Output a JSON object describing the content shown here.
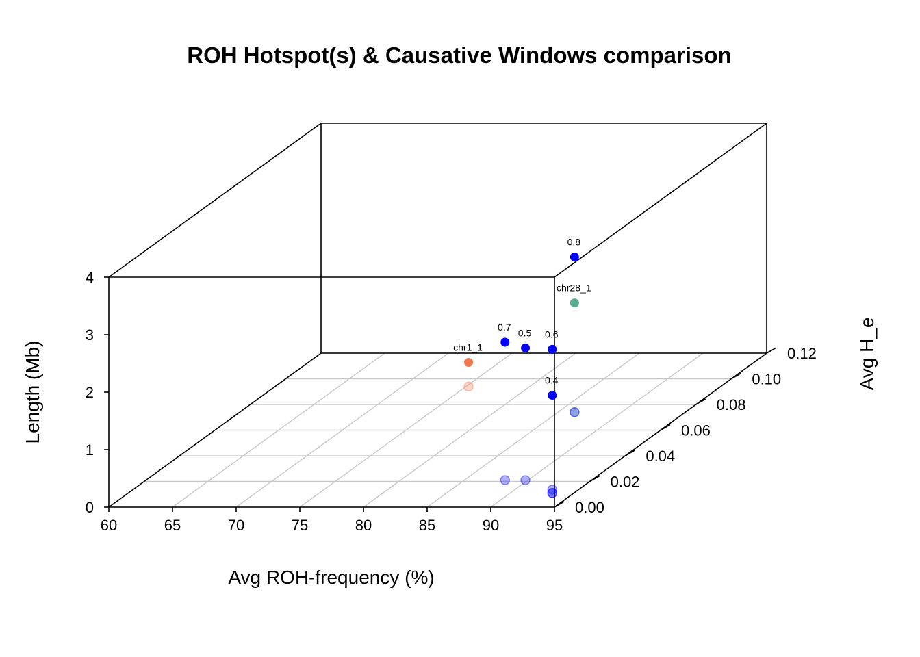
{
  "chart_data": {
    "type": "scatter",
    "title": "ROH Hotspot(s) & Causative Windows comparison",
    "xlabel": "Avg ROH-frequency (%)",
    "ylabel": "Avg H_e",
    "zlabel": "Length (Mb)",
    "xlim": [
      60,
      95
    ],
    "ylim": [
      0,
      0.12
    ],
    "zlim": [
      0,
      4
    ],
    "x_ticks": [
      "60",
      "65",
      "70",
      "75",
      "80",
      "85",
      "90",
      "95"
    ],
    "y_ticks": [
      "0.00",
      "0.02",
      "0.04",
      "0.06",
      "0.08",
      "0.10",
      "0.12"
    ],
    "z_ticks": [
      "0",
      "1",
      "2",
      "3",
      "4"
    ],
    "colors": {
      "hotspot_chr1": "#f07a50",
      "hotspot_chr28": "#5aaa8f",
      "window": "#0000ff"
    },
    "points": [
      {
        "label": "chr1_1",
        "x": 75.2,
        "y": 0.094,
        "z": 0.42,
        "color": "#f07a50"
      },
      {
        "label": "chr28_1",
        "x": 86.3,
        "y": 0.074,
        "z": 1.9,
        "color": "#5aaa8f"
      },
      {
        "label": "0.4",
        "x": 93.3,
        "y": 0.011,
        "z": 1.7,
        "color": "#0000ff"
      },
      {
        "label": "0.5",
        "x": 89.8,
        "y": 0.021,
        "z": 2.3,
        "color": "#0000ff"
      },
      {
        "label": "0.6",
        "x": 93.3,
        "y": 0.011,
        "z": 2.5,
        "color": "#0000ff"
      },
      {
        "label": "0.7",
        "x": 88.2,
        "y": 0.021,
        "z": 2.4,
        "color": "#0000ff"
      },
      {
        "label": "0.8",
        "x": 86.3,
        "y": 0.074,
        "z": 2.7,
        "color": "#0000ff"
      }
    ],
    "extra_drop_points": [
      {
        "x": 93.3,
        "y": 0.011,
        "z": 0,
        "color": "#0000ff"
      }
    ]
  }
}
